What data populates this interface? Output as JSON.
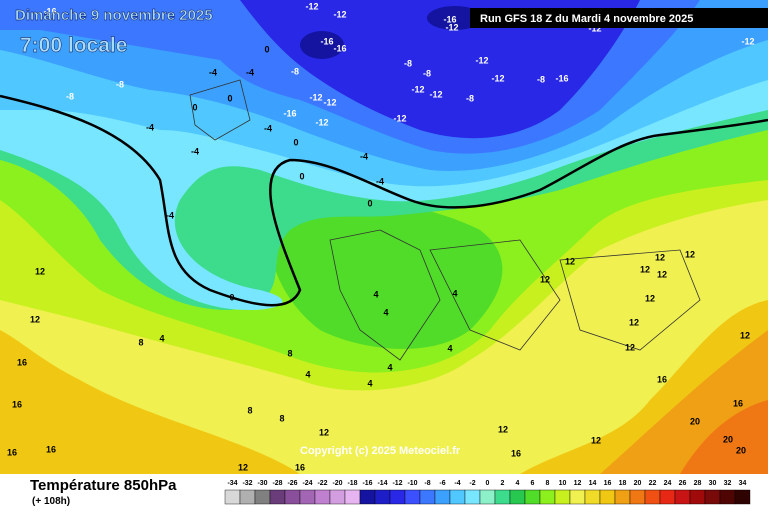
{
  "header": {
    "date": "Dimanche 9 novembre 2025",
    "time": "7:00 locale",
    "run": "Run GFS 18 Z du Mardi 4 novembre 2025"
  },
  "copyright": "Copyright (c) 2025 Meteociel.fr",
  "footer": {
    "title": "Température 850hPa",
    "lead": "(+ 108h)"
  },
  "legend": {
    "ticks": [
      -34,
      -32,
      -30,
      -28,
      -26,
      -24,
      -22,
      -20,
      -18,
      -16,
      -14,
      -12,
      -10,
      -8,
      -6,
      -4,
      -2,
      0,
      2,
      4,
      6,
      8,
      10,
      12,
      14,
      16,
      18,
      20,
      22,
      24,
      26,
      28,
      30,
      32,
      34
    ],
    "colors": [
      "#d8d8d8",
      "#b0b0b0",
      "#808080",
      "#6a3d7a",
      "#8a4f9a",
      "#a366b5",
      "#c080d0",
      "#d29ee0",
      "#e6b4f0",
      "#1414a0",
      "#1e1ec8",
      "#2828e6",
      "#3c50ff",
      "#3c78ff",
      "#3ca0ff",
      "#50c8ff",
      "#78e6ff",
      "#8cf0c8",
      "#3cdc8c",
      "#28c850",
      "#50dc28",
      "#8cf01e",
      "#c8f01e",
      "#f0f050",
      "#f0dc28",
      "#f0c814",
      "#f0a014",
      "#f07814",
      "#f05014",
      "#e62814",
      "#c81414",
      "#a00a0a",
      "#780a0a",
      "#500505",
      "#300303"
    ]
  },
  "contour_labels": [
    -16,
    -12,
    -12,
    -16,
    -12,
    -12,
    -12,
    -8,
    -8,
    0,
    -16,
    -16,
    -4,
    -4,
    -8,
    -8,
    -8,
    -12,
    -12,
    -8,
    -16,
    -12,
    -12,
    -16,
    -12,
    -12,
    -12,
    -8,
    0,
    0,
    -4,
    -4,
    -12,
    -4,
    0,
    -4,
    -4,
    0,
    -4,
    0,
    0,
    12,
    12,
    8,
    4,
    8,
    16,
    16,
    16,
    16,
    8,
    8,
    12,
    16,
    12,
    4,
    4,
    4,
    4,
    4,
    4,
    4,
    12,
    12,
    12,
    12,
    12,
    12,
    12,
    12,
    16,
    16,
    20,
    20,
    20,
    12,
    16,
    12,
    12,
    12
  ]
}
